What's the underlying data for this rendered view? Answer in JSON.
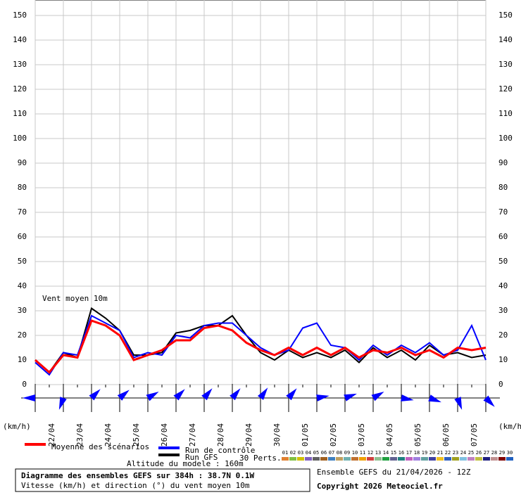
{
  "chart_data": {
    "type": "line",
    "annotation": "Vent moyen 10m",
    "y_unit_label": "(km/h)",
    "x": [
      0,
      12,
      24,
      36,
      48,
      60,
      72,
      84,
      96,
      108,
      120,
      132,
      144,
      156,
      168,
      180,
      192,
      204,
      216,
      228,
      240,
      252,
      264,
      276,
      288,
      300,
      312,
      324,
      336,
      348,
      360,
      372,
      384
    ],
    "xlim": [
      0,
      384
    ],
    "date_ticks": [
      {
        "value": 12,
        "label": "22/04"
      },
      {
        "value": 36,
        "label": "23/04"
      },
      {
        "value": 60,
        "label": "24/04"
      },
      {
        "value": 84,
        "label": "25/04"
      },
      {
        "value": 108,
        "label": "26/04"
      },
      {
        "value": 132,
        "label": "27/04"
      },
      {
        "value": 156,
        "label": "28/04"
      },
      {
        "value": 180,
        "label": "29/04"
      },
      {
        "value": 204,
        "label": "30/04"
      },
      {
        "value": 228,
        "label": "01/05"
      },
      {
        "value": 252,
        "label": "02/05"
      },
      {
        "value": 276,
        "label": "03/05"
      },
      {
        "value": 300,
        "label": "04/05"
      },
      {
        "value": 324,
        "label": "05/05"
      },
      {
        "value": 348,
        "label": "06/05"
      },
      {
        "value": 372,
        "label": "07/05"
      }
    ],
    "ylim": [
      0,
      150
    ],
    "yticks": [
      0,
      10,
      20,
      30,
      40,
      50,
      60,
      70,
      80,
      90,
      100,
      110,
      120,
      130,
      140,
      150
    ],
    "grid": true,
    "series": [
      {
        "name": "Run GFS",
        "color": "#000000",
        "values": [
          10,
          5,
          13,
          11,
          31,
          27,
          22,
          12,
          12,
          13,
          21,
          22,
          24,
          24,
          28,
          20,
          13,
          10,
          14,
          11,
          13,
          11,
          14,
          9,
          15,
          11,
          14,
          10,
          16,
          12,
          13,
          11,
          12
        ]
      },
      {
        "name": "Run de contrôle",
        "color": "#0000ff",
        "values": [
          9,
          4,
          13,
          12,
          28,
          25,
          22,
          11,
          13,
          12,
          20,
          19,
          24,
          25,
          25,
          20,
          15,
          12,
          14,
          23,
          25,
          16,
          15,
          10,
          16,
          12,
          16,
          13,
          17,
          12,
          14,
          24,
          10
        ]
      },
      {
        "name": "Moyenne des scénarios",
        "color": "#ff0000",
        "values": [
          10,
          5,
          12,
          11,
          26,
          24,
          20,
          10,
          12,
          14,
          18,
          18,
          23,
          24,
          22,
          17,
          14,
          12,
          15,
          12,
          15,
          12,
          15,
          11,
          14,
          13,
          15,
          12,
          14,
          11,
          15,
          14,
          15
        ]
      }
    ],
    "wind_directions": [
      270,
      200,
      45,
      50,
      60,
      45,
      40,
      40,
      35,
      40,
      80,
      70,
      60,
      100,
      110,
      160,
      135
    ],
    "perturbations": {
      "label": "30 Perts.",
      "codes": [
        "01",
        "02",
        "03",
        "04",
        "05",
        "06",
        "07",
        "08",
        "09",
        "10",
        "11",
        "12",
        "13",
        "14",
        "15",
        "16",
        "17",
        "18",
        "19",
        "20",
        "21",
        "22",
        "23",
        "24",
        "25",
        "26",
        "27",
        "28",
        "29",
        "30"
      ],
      "colors": [
        "#e08030",
        "#80c040",
        "#d0c000",
        "#8060c0",
        "#606060",
        "#a06020",
        "#4080c0",
        "#c0a060",
        "#70b0b0",
        "#c07030",
        "#f0a000",
        "#d04040",
        "#90c090",
        "#20a040",
        "#606090",
        "#208080",
        "#c060c0",
        "#a080e0",
        "#60a0a0",
        "#4040a0",
        "#f0c020",
        "#3060c0",
        "#a0a020",
        "#80c0e0",
        "#c080c0",
        "#c0c040",
        "#202080",
        "#c09090",
        "#800000",
        "#2060c0"
      ]
    },
    "footer": {
      "title": "Diagramme des ensembles GEFS sur 384h : 38.7N 0.1W",
      "subtitle": "Vitesse (km/h) et direction (°) du vent moyen 10m",
      "altitude": "Altitude du modele : 160m",
      "run": "Ensemble GEFS du 21/04/2026 - 12Z",
      "copyright": "Copyright 2026 Meteociel.fr"
    }
  }
}
